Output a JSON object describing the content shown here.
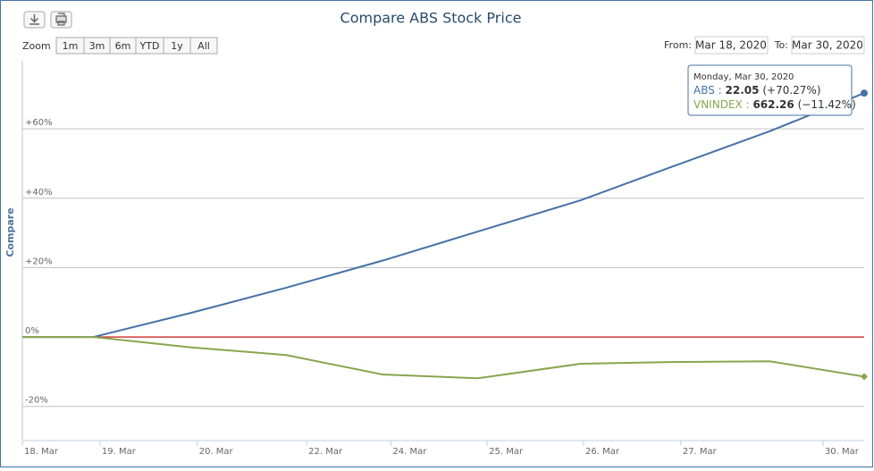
{
  "chart_data": {
    "type": "line",
    "title": "Compare ABS Stock Price",
    "y_label": "Compare",
    "zoom_label": "Zoom",
    "zoom_buttons": [
      "1m",
      "3m",
      "6m",
      "YTD",
      "1y",
      "All"
    ],
    "from_label": "From:",
    "from_value": "Mar 18, 2020",
    "to_label": "To:",
    "to_value": "Mar 30, 2020",
    "x": [
      0,
      0.76,
      1.81,
      2.82,
      3.85,
      4.87,
      5.97,
      6.99,
      7.99,
      9
    ],
    "xlim": [
      0,
      9
    ],
    "xticks": [
      {
        "value": 0,
        "label": "18. Mar"
      },
      {
        "value": 0.83,
        "label": "19. Mar"
      },
      {
        "value": 1.87,
        "label": "20. Mar"
      },
      {
        "value": 3.04,
        "label": "22. Mar"
      },
      {
        "value": 3.94,
        "label": "24. Mar"
      },
      {
        "value": 4.97,
        "label": "25. Mar"
      },
      {
        "value": 6.0,
        "label": "26. Mar"
      },
      {
        "value": 7.04,
        "label": "27. Mar"
      },
      {
        "value": 8.56,
        "label": "30. Mar"
      }
    ],
    "ylim": [
      -29.6,
      79.6
    ],
    "yticks": [
      {
        "value": -20,
        "label": "-20%"
      },
      {
        "value": 0,
        "label": "0%"
      },
      {
        "value": 20,
        "label": "+20%"
      },
      {
        "value": 40,
        "label": "+40%"
      },
      {
        "value": 60,
        "label": "+60%"
      }
    ],
    "grid": true,
    "zero_line_color": "#c00000",
    "series": [
      {
        "name": "ABS",
        "color": "#4572a7",
        "marker": "circle",
        "values": [
          0,
          0,
          7,
          14.2,
          22,
          30.4,
          39.4,
          49.5,
          59.3,
          70.27
        ]
      },
      {
        "name": "VNINDEX",
        "color": "#89a54e",
        "marker": "diamond",
        "values": [
          0,
          0,
          -3,
          -5.2,
          -10.8,
          -11.9,
          -7.7,
          -7.2,
          -7,
          -11.42
        ]
      }
    ],
    "tooltip": {
      "date": "Monday, Mar 30, 2020",
      "rows": [
        {
          "name": "ABS :",
          "price": "22.05",
          "change": "(+70.27%)"
        },
        {
          "name": "VNINDEX :",
          "price": "662.26",
          "change": "(−11.42%)"
        }
      ]
    }
  }
}
